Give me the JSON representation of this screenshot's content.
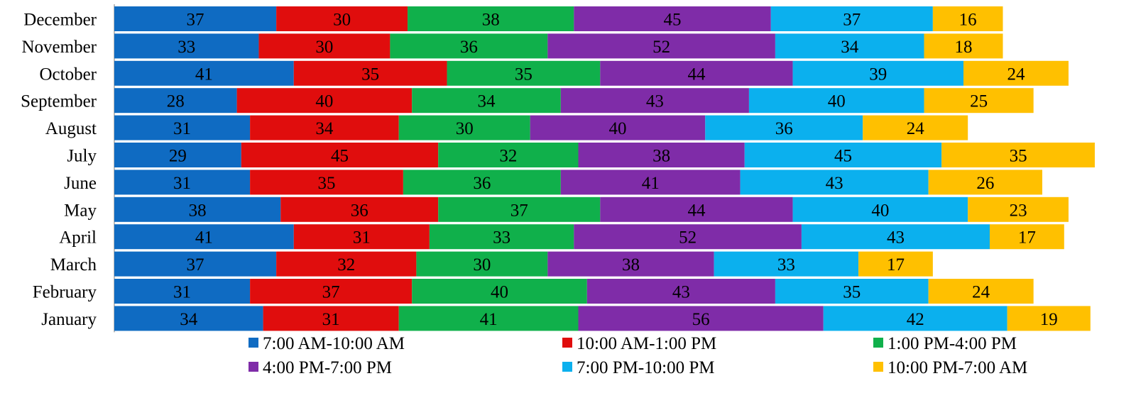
{
  "chart_data": {
    "type": "bar",
    "orientation": "horizontal",
    "stacked": true,
    "categories": [
      "January",
      "February",
      "March",
      "April",
      "May",
      "June",
      "July",
      "August",
      "September",
      "October",
      "November",
      "December"
    ],
    "series": [
      {
        "name": "7:00 AM-10:00 AM",
        "color": "#0F6BC2",
        "values": [
          34,
          31,
          37,
          41,
          38,
          31,
          29,
          31,
          28,
          41,
          33,
          37
        ]
      },
      {
        "name": "10:00 AM-1:00 PM",
        "color": "#E00D0D",
        "values": [
          31,
          37,
          32,
          31,
          36,
          35,
          45,
          34,
          40,
          35,
          30,
          30
        ]
      },
      {
        "name": "1:00 PM-4:00 PM",
        "color": "#10B04B",
        "values": [
          41,
          40,
          30,
          33,
          37,
          36,
          32,
          30,
          34,
          35,
          36,
          38
        ]
      },
      {
        "name": "4:00 PM-7:00 PM",
        "color": "#7F2CA8",
        "values": [
          56,
          43,
          38,
          52,
          44,
          41,
          38,
          40,
          43,
          44,
          52,
          45
        ]
      },
      {
        "name": "7:00 PM-10:00 PM",
        "color": "#0BB0EE",
        "values": [
          42,
          35,
          33,
          43,
          40,
          43,
          45,
          36,
          40,
          39,
          34,
          37
        ]
      },
      {
        "name": "10:00 PM-7:00 AM",
        "color": "#FFC000",
        "values": [
          19,
          24,
          17,
          17,
          23,
          26,
          35,
          24,
          25,
          24,
          18,
          16
        ]
      }
    ],
    "title": "",
    "xlabel": "",
    "ylabel": "",
    "grid": false,
    "legend": "bottom",
    "data_labels": true
  }
}
